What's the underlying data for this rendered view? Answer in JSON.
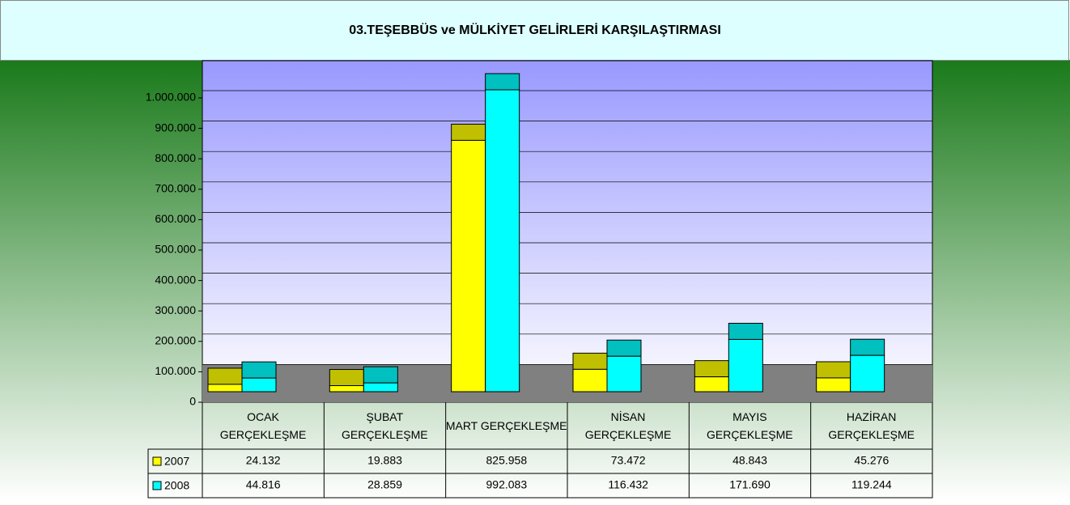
{
  "chart_data": {
    "type": "bar",
    "title": "03.TEŞEBBÜS ve MÜLKİYET GELİRLERİ KARŞILAŞTIRMASI",
    "categories": [
      "OCAK GERÇEKLEŞME",
      "ŞUBAT GERÇEKLEŞME",
      "MART GERÇEKLEŞME",
      "NİSAN GERÇEKLEŞME",
      "MAYIS GERÇEKLEŞME",
      "HAZİRAN GERÇEKLEŞME"
    ],
    "series": [
      {
        "name": "2007",
        "color": "#ffff00",
        "values": [
          24132,
          19883,
          825958,
          73472,
          48843,
          45276
        ],
        "value_labels": [
          "24.132",
          "19.883",
          "825.958",
          "73.472",
          "48.843",
          "45.276"
        ]
      },
      {
        "name": "2008",
        "color": "#00ffff",
        "values": [
          44816,
          28859,
          992083,
          116432,
          171690,
          119244
        ],
        "value_labels": [
          "44.816",
          "28.859",
          "992.083",
          "116.432",
          "171.690",
          "119.244"
        ]
      }
    ],
    "ylim": [
      0,
      1100000
    ],
    "yticks": [
      0,
      {
        "value": 100000,
        "label": "100.000"
      },
      {
        "value": 200000,
        "label": "200.000"
      },
      {
        "value": 300000,
        "label": "300.000"
      },
      {
        "value": 400000,
        "label": "400.000"
      },
      {
        "value": 500000,
        "label": "500.000"
      },
      {
        "value": 600000,
        "label": "600.000"
      },
      {
        "value": 700000,
        "label": "700.000"
      },
      {
        "value": 800000,
        "label": "800.000"
      },
      {
        "value": 900000,
        "label": "900.000"
      },
      {
        "value": 1000000,
        "label": "1.000.000"
      }
    ],
    "grid": true
  }
}
